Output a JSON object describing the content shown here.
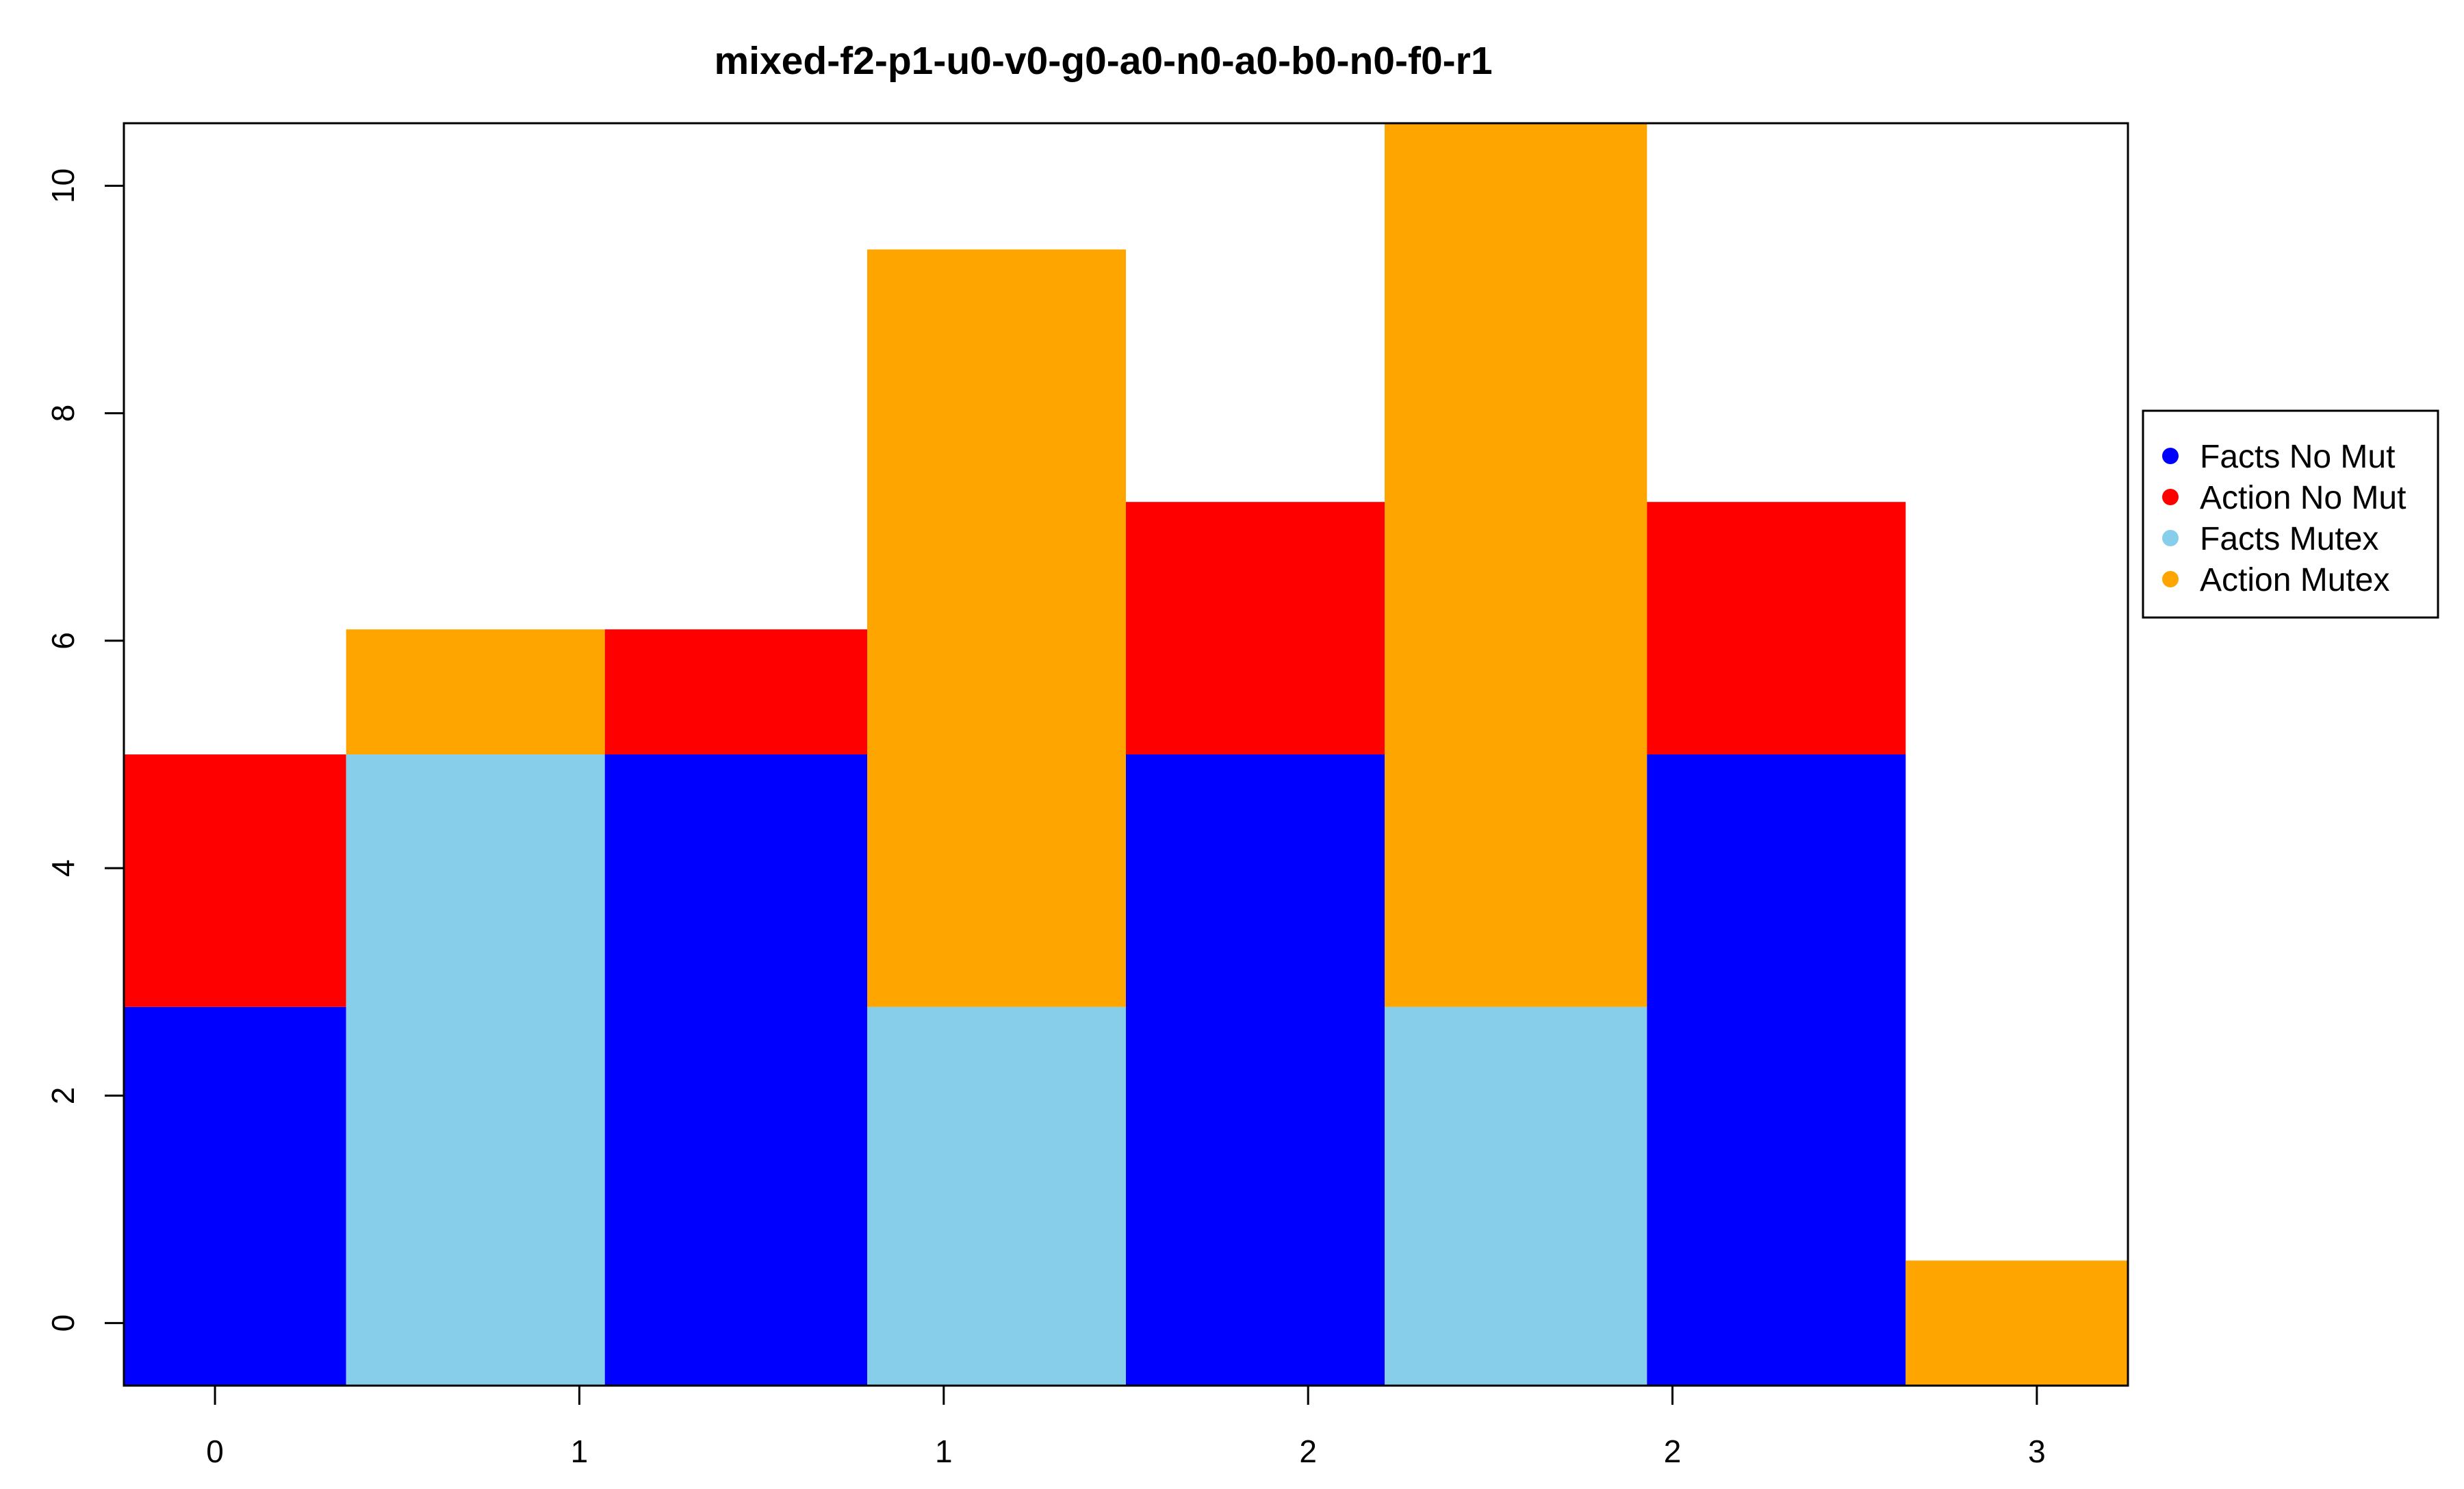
{
  "chart_data": {
    "type": "bar",
    "title": "mixed-f2-p1-u0-v0-g0-a0-n0-a0-b0-n0-f0-r1",
    "xlabel": "",
    "ylabel": "",
    "ylim": [
      -0.55,
      10.55
    ],
    "xlim": [
      -0.25,
      5.25
    ],
    "x_ticks": [
      {
        "x": 0,
        "label": "0"
      },
      {
        "x": 1,
        "label": "1"
      },
      {
        "x": 2,
        "label": "1"
      },
      {
        "x": 3,
        "label": "2"
      },
      {
        "x": 4,
        "label": "2"
      },
      {
        "x": 5,
        "label": "3"
      }
    ],
    "y_ticks": [
      {
        "y": 0,
        "label": "0"
      },
      {
        "y": 2,
        "label": "2"
      },
      {
        "y": 4,
        "label": "4"
      },
      {
        "y": 6,
        "label": "6"
      },
      {
        "y": 8,
        "label": "8"
      },
      {
        "y": 10,
        "label": "10"
      }
    ],
    "series_colors": {
      "Facts No Mut": "#0000FF",
      "Action No Mut": "#FF0000",
      "Facts Mutex": "#87CEEB",
      "Action Mutex": "#FFA500"
    },
    "segments": [
      {
        "x0": -0.25,
        "x1": 0.36,
        "y0": -0.55,
        "y1": 2.78,
        "series": "Facts No Mut"
      },
      {
        "x0": -0.25,
        "x1": 0.36,
        "y0": 2.78,
        "y1": 5.0,
        "series": "Action No Mut"
      },
      {
        "x0": 0.36,
        "x1": 1.07,
        "y0": -0.55,
        "y1": 5.0,
        "series": "Facts Mutex"
      },
      {
        "x0": 0.36,
        "x1": 1.07,
        "y0": 5.0,
        "y1": 6.1,
        "series": "Action Mutex"
      },
      {
        "x0": 1.07,
        "x1": 1.79,
        "y0": -0.55,
        "y1": 5.0,
        "series": "Facts No Mut"
      },
      {
        "x0": 1.07,
        "x1": 1.79,
        "y0": 5.0,
        "y1": 6.1,
        "series": "Action No Mut"
      },
      {
        "x0": 1.79,
        "x1": 2.5,
        "y0": -0.55,
        "y1": 2.78,
        "series": "Facts Mutex"
      },
      {
        "x0": 1.79,
        "x1": 2.5,
        "y0": 2.78,
        "y1": 9.44,
        "series": "Action Mutex"
      },
      {
        "x0": 2.5,
        "x1": 3.21,
        "y0": -0.55,
        "y1": 5.0,
        "series": "Facts No Mut"
      },
      {
        "x0": 2.5,
        "x1": 3.21,
        "y0": 5.0,
        "y1": 7.22,
        "series": "Action No Mut"
      },
      {
        "x0": 3.21,
        "x1": 3.93,
        "y0": -0.55,
        "y1": 2.78,
        "series": "Facts Mutex"
      },
      {
        "x0": 3.21,
        "x1": 3.93,
        "y0": 2.78,
        "y1": 10.55,
        "series": "Action Mutex"
      },
      {
        "x0": 3.93,
        "x1": 4.64,
        "y0": -0.55,
        "y1": 5.0,
        "series": "Facts No Mut"
      },
      {
        "x0": 3.93,
        "x1": 4.64,
        "y0": 5.0,
        "y1": 7.22,
        "series": "Action No Mut"
      },
      {
        "x0": 4.64,
        "x1": 5.25,
        "y0": -0.55,
        "y1": 0.55,
        "series": "Action Mutex"
      }
    ],
    "legend": {
      "placement": "right",
      "entries": [
        {
          "label": "Facts No Mut",
          "color": "#0000FF"
        },
        {
          "label": "Action No Mut",
          "color": "#FF0000"
        },
        {
          "label": "Facts Mutex",
          "color": "#87CEEB"
        },
        {
          "label": "Action Mutex",
          "color": "#FFA500"
        }
      ]
    },
    "grid": false
  }
}
